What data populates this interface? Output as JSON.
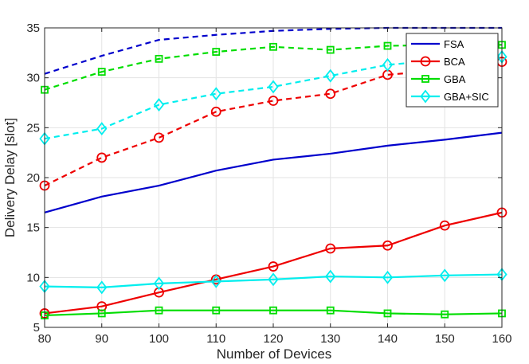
{
  "chart_data": {
    "type": "line",
    "xlabel": "Number of Devices",
    "ylabel": "Delivery Delay [slot]",
    "xlim": [
      80,
      160
    ],
    "ylim": [
      5,
      35
    ],
    "xticks": [
      80,
      90,
      100,
      110,
      120,
      130,
      140,
      150,
      160
    ],
    "yticks": [
      5,
      10,
      15,
      20,
      25,
      30,
      35
    ],
    "grid": true,
    "legend_position": "top-right",
    "x": [
      80,
      90,
      100,
      110,
      120,
      130,
      140,
      150,
      160
    ],
    "series": [
      {
        "name": "FSA",
        "color": "#0000cc",
        "style": "solid",
        "marker": "none",
        "values": [
          16.5,
          18.1,
          19.2,
          20.7,
          21.8,
          22.4,
          23.2,
          23.8,
          24.5
        ]
      },
      {
        "name": "BCA",
        "color": "#ee0000",
        "style": "solid",
        "marker": "circle",
        "values": [
          6.4,
          7.1,
          8.5,
          9.8,
          11.1,
          12.9,
          13.2,
          15.2,
          16.5
        ]
      },
      {
        "name": "GBA",
        "color": "#00dd00",
        "style": "solid",
        "marker": "square",
        "values": [
          6.2,
          6.4,
          6.7,
          6.7,
          6.7,
          6.7,
          6.4,
          6.3,
          6.4
        ]
      },
      {
        "name": "GBA+SIC",
        "color": "#00eeee",
        "style": "solid",
        "marker": "diamond",
        "values": [
          9.1,
          9.0,
          9.4,
          9.6,
          9.8,
          10.1,
          10.0,
          10.2,
          10.3
        ]
      },
      {
        "name": "",
        "color": "#0000cc",
        "style": "dashed",
        "marker": "none",
        "values": [
          30.4,
          32.2,
          33.8,
          34.3,
          34.7,
          34.9,
          35.0,
          35.0,
          35.0
        ]
      },
      {
        "name": "",
        "color": "#ee0000",
        "style": "dashed",
        "marker": "circle",
        "values": [
          19.2,
          22.0,
          24.0,
          26.6,
          27.7,
          28.4,
          30.3,
          30.8,
          31.6
        ]
      },
      {
        "name": "",
        "color": "#00dd00",
        "style": "dashed",
        "marker": "square",
        "values": [
          28.8,
          30.6,
          31.9,
          32.6,
          33.1,
          32.8,
          33.2,
          33.3,
          33.3
        ]
      },
      {
        "name": "",
        "color": "#00eeee",
        "style": "dashed",
        "marker": "diamond",
        "values": [
          23.9,
          24.9,
          27.3,
          28.4,
          29.1,
          30.2,
          31.3,
          31.8,
          32.1
        ]
      }
    ]
  }
}
